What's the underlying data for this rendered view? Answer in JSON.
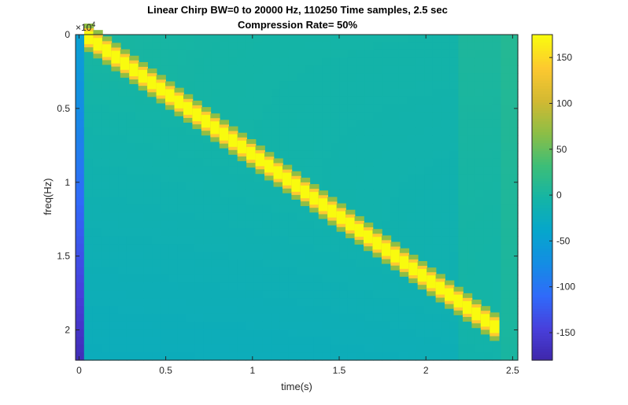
{
  "chart_data": {
    "type": "heatmap",
    "title": "Linear Chirp BW=0 to 20000 Hz, 110250 Time samples, 2.5 sec",
    "subtitle": "Compression Rate= 50%",
    "xlabel": "time(s)",
    "ylabel": "freq(Hz)",
    "y_exponent_label": "×10",
    "y_exponent_power": "4",
    "xlim": [
      -0.02,
      2.53
    ],
    "ylim": [
      0,
      22050
    ],
    "y_reversed": true,
    "x_ticks": [
      0,
      0.5,
      1,
      1.5,
      2,
      2.5
    ],
    "x_tick_labels": [
      "0",
      "0.5",
      "1",
      "1.5",
      "2",
      "2.5"
    ],
    "y_ticks": [
      0,
      5000,
      10000,
      15000,
      20000
    ],
    "y_tick_labels": [
      "0",
      "0.5",
      "1",
      "1.5",
      "2"
    ],
    "colorbar": {
      "colormap": "parula",
      "limits": [
        -180,
        175
      ],
      "ticks": [
        150,
        100,
        50,
        0,
        -50,
        -100,
        -150
      ],
      "tick_labels": [
        "150",
        "100",
        "50",
        "0",
        "-50",
        "-100",
        "-150"
      ]
    },
    "chirp": {
      "start_time_s": 0.03,
      "end_time_s": 2.42,
      "start_freq_hz": 0,
      "end_freq_hz": 20000,
      "peak_value": 175
    },
    "background_value": -5,
    "grid": false
  }
}
